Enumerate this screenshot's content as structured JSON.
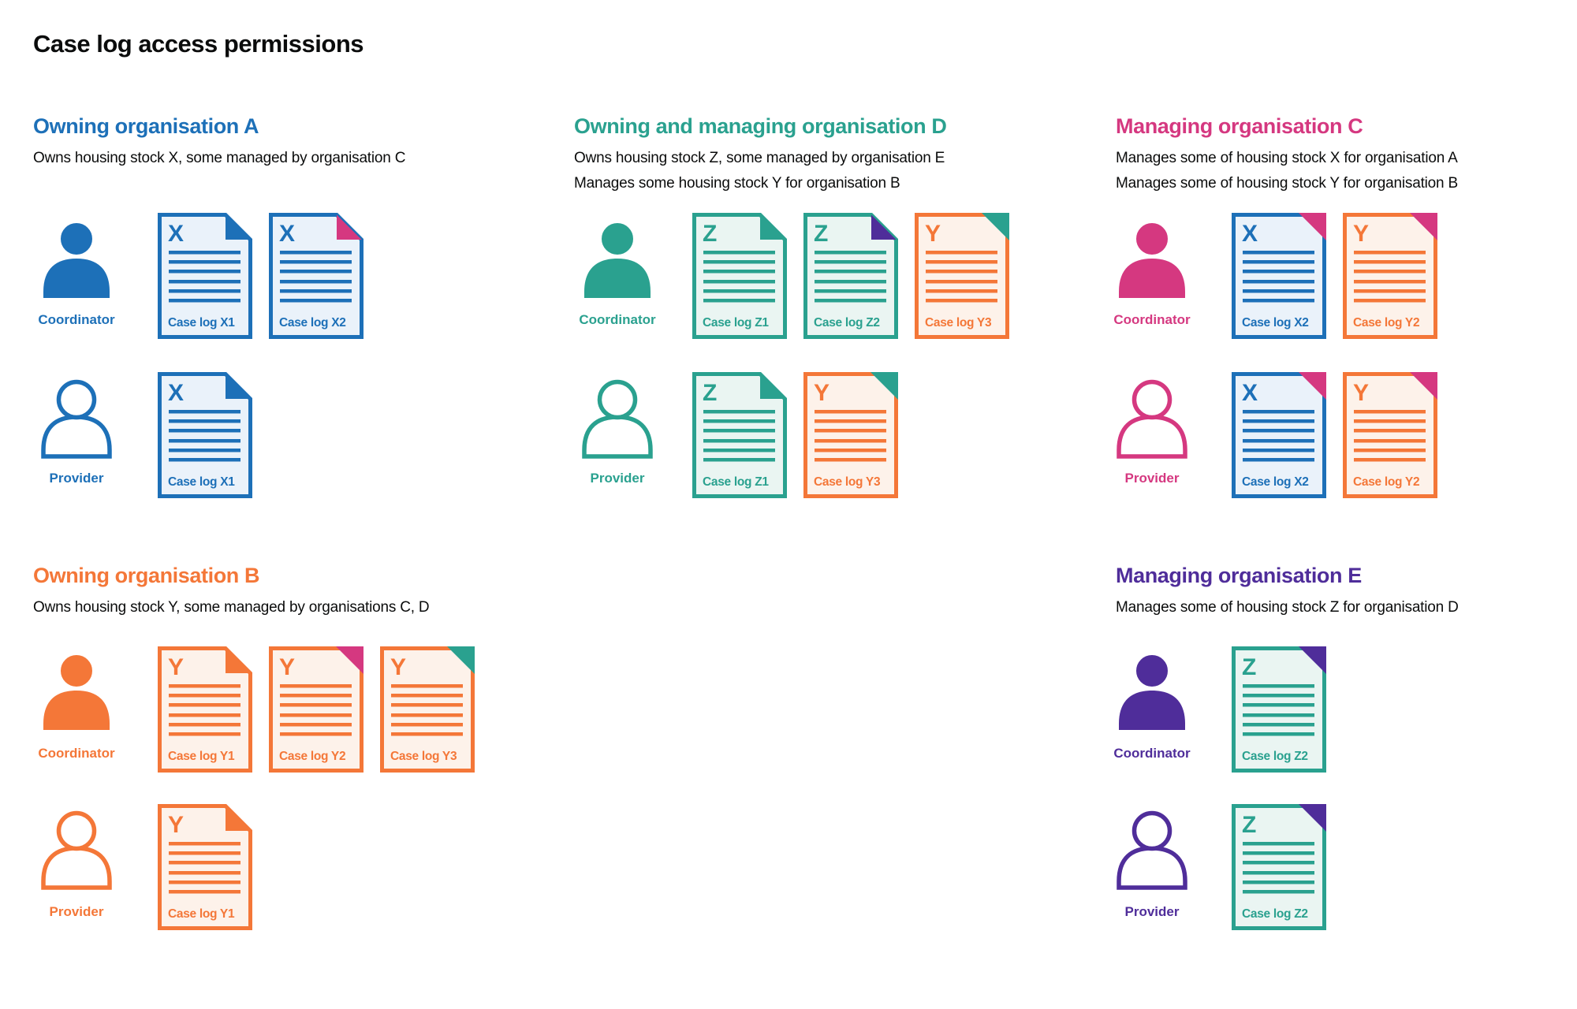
{
  "title": "Case log access permissions",
  "colors": {
    "blue": "#1d70b8",
    "teal": "#2aa18f",
    "orange": "#f47738",
    "pink": "#d53880",
    "purple": "#4f2d9a",
    "text": "#0b0c0c"
  },
  "doc_fills": {
    "blue": "#eaf2fa",
    "teal": "#eaf5f2",
    "orange": "#fdf2ea"
  },
  "sections": [
    {
      "id": "A",
      "title": "Owning organisation A",
      "color": "blue",
      "description": [
        "Owns housing stock X, some managed by organisation C"
      ],
      "rows": [
        {
          "role": "Coordinator",
          "docs": [
            {
              "letter": "X",
              "label": "Case log X1",
              "color": "blue",
              "fold": "blue",
              "foldStyle": "flap"
            },
            {
              "letter": "X",
              "label": "Case log X2",
              "color": "blue",
              "fold": "pink",
              "foldStyle": "flap"
            }
          ]
        },
        {
          "role": "Provider",
          "docs": [
            {
              "letter": "X",
              "label": "Case log X1",
              "color": "blue",
              "fold": "blue",
              "foldStyle": "flap"
            }
          ]
        }
      ]
    },
    {
      "id": "D",
      "title": "Owning and managing organisation D",
      "color": "teal",
      "description": [
        "Owns housing stock Z, some managed by organisation E",
        "Manages some housing stock Y for organisation B"
      ],
      "rows": [
        {
          "role": "Coordinator",
          "docs": [
            {
              "letter": "Z",
              "label": "Case log Z1",
              "color": "teal",
              "fold": "teal",
              "foldStyle": "flap"
            },
            {
              "letter": "Z",
              "label": "Case log Z2",
              "color": "teal",
              "fold": "purple",
              "foldStyle": "flap"
            },
            {
              "letter": "Y",
              "label": "Case log Y3",
              "color": "orange",
              "fold": "teal",
              "foldStyle": "corner"
            }
          ]
        },
        {
          "role": "Provider",
          "docs": [
            {
              "letter": "Z",
              "label": "Case log Z1",
              "color": "teal",
              "fold": "teal",
              "foldStyle": "flap"
            },
            {
              "letter": "Y",
              "label": "Case log Y3",
              "color": "orange",
              "fold": "teal",
              "foldStyle": "corner"
            }
          ]
        }
      ]
    },
    {
      "id": "C",
      "title": "Managing organisation C",
      "color": "pink",
      "description": [
        "Manages some of housing stock X for organisation A",
        "Manages some of housing stock Y for organisation B"
      ],
      "rows": [
        {
          "role": "Coordinator",
          "docs": [
            {
              "letter": "X",
              "label": "Case log X2",
              "color": "blue",
              "fold": "pink",
              "foldStyle": "corner"
            },
            {
              "letter": "Y",
              "label": "Case log Y2",
              "color": "orange",
              "fold": "pink",
              "foldStyle": "corner"
            }
          ]
        },
        {
          "role": "Provider",
          "docs": [
            {
              "letter": "X",
              "label": "Case log X2",
              "color": "blue",
              "fold": "pink",
              "foldStyle": "corner"
            },
            {
              "letter": "Y",
              "label": "Case log Y2",
              "color": "orange",
              "fold": "pink",
              "foldStyle": "corner"
            }
          ]
        }
      ]
    },
    {
      "id": "B",
      "title": "Owning organisation B",
      "color": "orange",
      "description": [
        "Owns housing stock Y, some managed by organisations C, D"
      ],
      "rows": [
        {
          "role": "Coordinator",
          "docs": [
            {
              "letter": "Y",
              "label": "Case log Y1",
              "color": "orange",
              "fold": "orange",
              "foldStyle": "flap"
            },
            {
              "letter": "Y",
              "label": "Case log Y2",
              "color": "orange",
              "fold": "pink",
              "foldStyle": "corner"
            },
            {
              "letter": "Y",
              "label": "Case log Y3",
              "color": "orange",
              "fold": "teal",
              "foldStyle": "corner"
            }
          ]
        },
        {
          "role": "Provider",
          "docs": [
            {
              "letter": "Y",
              "label": "Case log Y1",
              "color": "orange",
              "fold": "orange",
              "foldStyle": "flap"
            }
          ]
        }
      ]
    },
    {
      "id": "E",
      "title": "Managing organisation E",
      "color": "purple",
      "description": [
        "Manages some of housing stock Z for organisation D"
      ],
      "rows": [
        {
          "role": "Coordinator",
          "docs": [
            {
              "letter": "Z",
              "label": "Case log Z2",
              "color": "teal",
              "fold": "purple",
              "foldStyle": "corner"
            }
          ]
        },
        {
          "role": "Provider",
          "docs": [
            {
              "letter": "Z",
              "label": "Case log Z2",
              "color": "teal",
              "fold": "purple",
              "foldStyle": "corner"
            }
          ]
        }
      ]
    }
  ]
}
